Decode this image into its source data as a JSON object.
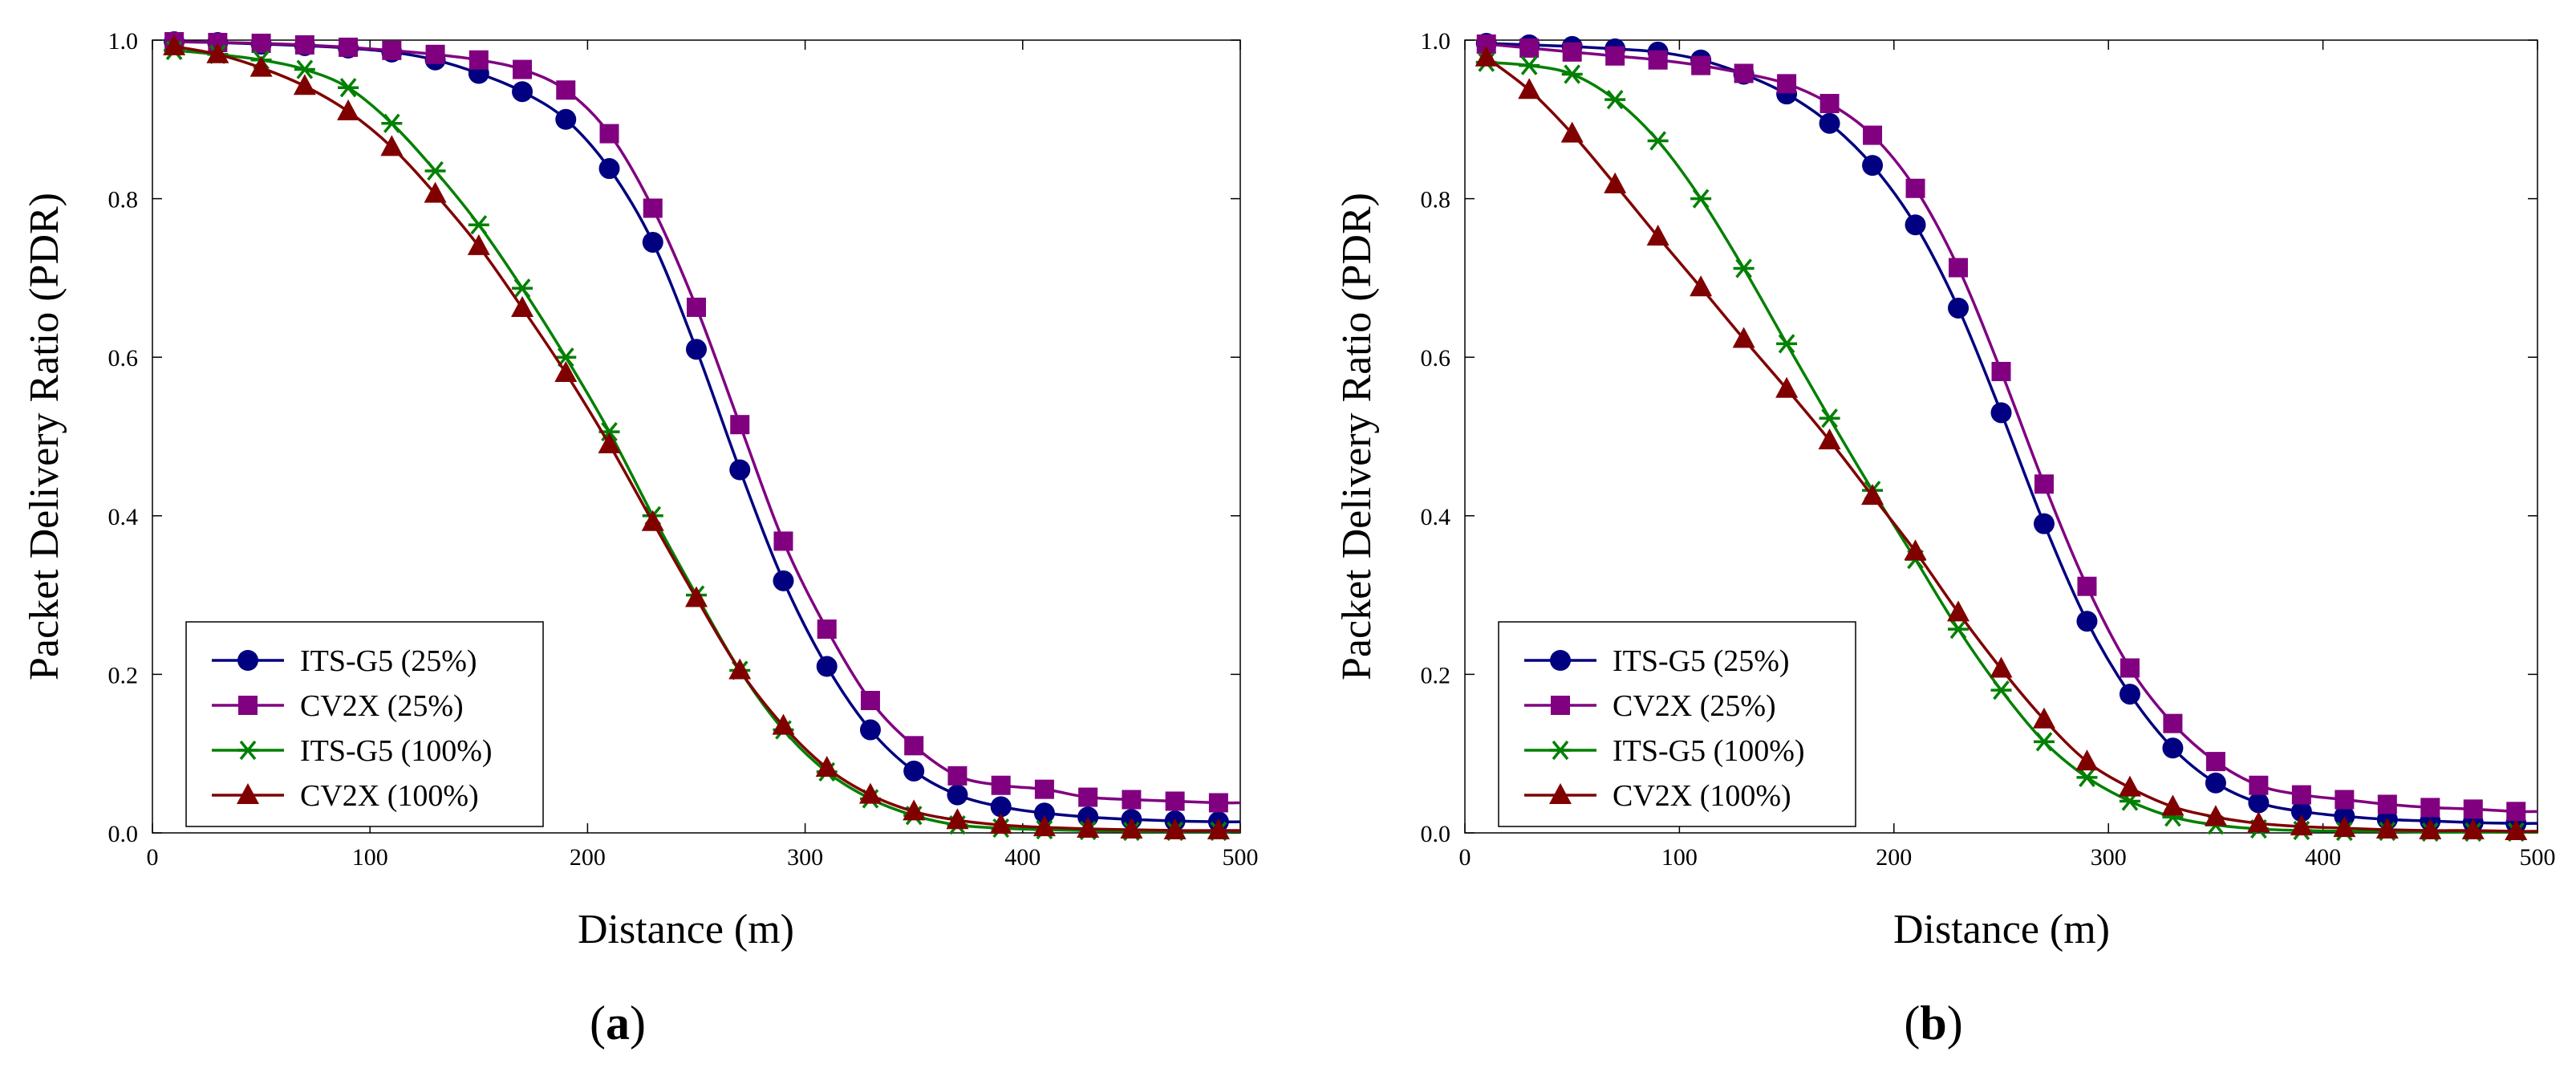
{
  "chart_data": [
    {
      "type": "line",
      "panel_label": "a",
      "xlabel": "Distance (m)",
      "ylabel": "Packet Delivery Ratio (PDR)",
      "xlim": [
        0,
        500
      ],
      "ylim": [
        0,
        1.0
      ],
      "xticks": [
        "0",
        "100",
        "200",
        "300",
        "400",
        "500"
      ],
      "yticks": [
        "0.0",
        "0.2",
        "0.4",
        "0.6",
        "0.8",
        "1.0"
      ],
      "grid": false,
      "legend_position": "bottom-left",
      "x": [
        10,
        30,
        50,
        70,
        90,
        110,
        130,
        150,
        170,
        190,
        210,
        230,
        250,
        270,
        290,
        310,
        330,
        350,
        370,
        390,
        410,
        430,
        450,
        470,
        490
      ],
      "series": [
        {
          "name": "ITS-G5 (25%)",
          "color": "#000080",
          "marker": "circle",
          "values": [
            0.998,
            0.997,
            0.995,
            0.993,
            0.99,
            0.985,
            0.975,
            0.958,
            0.935,
            0.9,
            0.838,
            0.745,
            0.61,
            0.458,
            0.318,
            0.21,
            0.13,
            0.078,
            0.048,
            0.033,
            0.025,
            0.02,
            0.017,
            0.015,
            0.014
          ]
        },
        {
          "name": "CV2X (25%)",
          "color": "#800080",
          "marker": "square",
          "values": [
            0.998,
            0.997,
            0.996,
            0.994,
            0.991,
            0.987,
            0.982,
            0.975,
            0.963,
            0.937,
            0.882,
            0.788,
            0.663,
            0.515,
            0.368,
            0.257,
            0.167,
            0.11,
            0.072,
            0.06,
            0.055,
            0.045,
            0.042,
            0.04,
            0.038
          ]
        },
        {
          "name": "ITS-G5 (100%)",
          "color": "#008000",
          "marker": "star",
          "values": [
            0.987,
            0.982,
            0.975,
            0.963,
            0.94,
            0.895,
            0.835,
            0.767,
            0.687,
            0.6,
            0.506,
            0.4,
            0.3,
            0.205,
            0.13,
            0.077,
            0.043,
            0.022,
            0.01,
            0.006,
            0.004,
            0.003,
            0.002,
            0.002,
            0.002
          ]
        },
        {
          "name": "CV2X (100%)",
          "color": "#800000",
          "marker": "triangle",
          "values": [
            0.992,
            0.982,
            0.965,
            0.942,
            0.91,
            0.865,
            0.806,
            0.74,
            0.662,
            0.58,
            0.49,
            0.392,
            0.296,
            0.205,
            0.135,
            0.082,
            0.048,
            0.027,
            0.016,
            0.01,
            0.007,
            0.005,
            0.004,
            0.003,
            0.003
          ]
        }
      ]
    },
    {
      "type": "line",
      "panel_label": "b",
      "xlabel": "Distance (m)",
      "ylabel": "Packet Delivery Ratio (PDR)",
      "xlim": [
        0,
        500
      ],
      "ylim": [
        0,
        1.0
      ],
      "xticks": [
        "0",
        "100",
        "200",
        "300",
        "400",
        "500"
      ],
      "yticks": [
        "0.0",
        "0.2",
        "0.4",
        "0.6",
        "0.8",
        "1.0"
      ],
      "grid": false,
      "legend_position": "bottom-left",
      "x": [
        10,
        30,
        50,
        70,
        90,
        110,
        130,
        150,
        170,
        190,
        210,
        230,
        250,
        270,
        290,
        310,
        330,
        350,
        370,
        390,
        410,
        430,
        450,
        470,
        490
      ],
      "series": [
        {
          "name": "ITS-G5 (25%)",
          "color": "#000080",
          "marker": "circle",
          "values": [
            0.996,
            0.994,
            0.992,
            0.989,
            0.985,
            0.975,
            0.957,
            0.932,
            0.895,
            0.842,
            0.767,
            0.662,
            0.53,
            0.39,
            0.267,
            0.175,
            0.107,
            0.063,
            0.038,
            0.027,
            0.021,
            0.017,
            0.015,
            0.013,
            0.012
          ]
        },
        {
          "name": "CV2X (25%)",
          "color": "#800080",
          "marker": "square",
          "values": [
            0.995,
            0.99,
            0.985,
            0.98,
            0.975,
            0.968,
            0.958,
            0.945,
            0.92,
            0.88,
            0.813,
            0.713,
            0.582,
            0.44,
            0.311,
            0.208,
            0.138,
            0.09,
            0.06,
            0.048,
            0.042,
            0.036,
            0.032,
            0.03,
            0.027
          ]
        },
        {
          "name": "ITS-G5 (100%)",
          "color": "#008000",
          "marker": "star",
          "values": [
            0.972,
            0.968,
            0.957,
            0.925,
            0.873,
            0.8,
            0.712,
            0.617,
            0.523,
            0.432,
            0.345,
            0.257,
            0.18,
            0.115,
            0.07,
            0.04,
            0.02,
            0.01,
            0.005,
            0.003,
            0.002,
            0.002,
            0.001,
            0.001,
            0.001
          ]
        },
        {
          "name": "CV2X (100%)",
          "color": "#800000",
          "marker": "triangle",
          "values": [
            0.978,
            0.937,
            0.882,
            0.818,
            0.752,
            0.688,
            0.623,
            0.56,
            0.495,
            0.425,
            0.355,
            0.278,
            0.207,
            0.143,
            0.09,
            0.057,
            0.033,
            0.02,
            0.012,
            0.008,
            0.006,
            0.004,
            0.003,
            0.003,
            0.002
          ]
        }
      ]
    }
  ]
}
